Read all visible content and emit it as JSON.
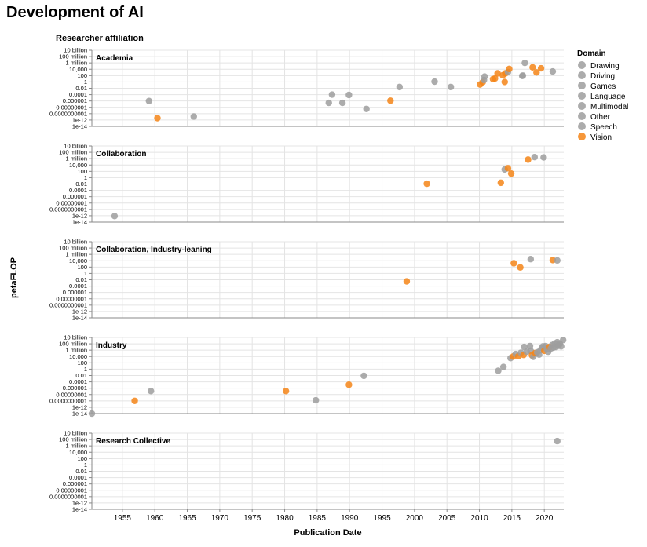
{
  "title": "Development of AI",
  "chart_data": {
    "type": "scatter",
    "title": "Development of AI",
    "facet_label": "Researcher affiliation",
    "xlabel": "Publication Date",
    "ylabel": "petaFLOP",
    "xlim": [
      1950.3,
      2023.0
    ],
    "ylim_log10": [
      -14,
      10
    ],
    "y_scale": "log",
    "x_ticks": [
      "1955",
      "1960",
      "1965",
      "1970",
      "1975",
      "1980",
      "1985",
      "1990",
      "1995",
      "2000",
      "2005",
      "2010",
      "2015",
      "2020"
    ],
    "y_ticks": [
      {
        "label": "10 billion",
        "log10": 10
      },
      {
        "label": "100 million",
        "log10": 8
      },
      {
        "label": "1 million",
        "log10": 6
      },
      {
        "label": "10,000",
        "log10": 4
      },
      {
        "label": "100",
        "log10": 2
      },
      {
        "label": "1",
        "log10": 0
      },
      {
        "label": "0.01",
        "log10": -2
      },
      {
        "label": "0.0001",
        "log10": -4
      },
      {
        "label": "0.000001",
        "log10": -6
      },
      {
        "label": "0.00000001",
        "log10": -8
      },
      {
        "label": "0.0000000001",
        "log10": -10
      },
      {
        "label": "1e-12",
        "log10": -12
      },
      {
        "label": "1e-14",
        "log10": -14
      }
    ],
    "grid": true,
    "legend": {
      "title": "Domain",
      "position": "right",
      "entries": [
        {
          "name": "Drawing",
          "color": "#9e9e9e"
        },
        {
          "name": "Driving",
          "color": "#9e9e9e"
        },
        {
          "name": "Games",
          "color": "#9e9e9e"
        },
        {
          "name": "Language",
          "color": "#9e9e9e"
        },
        {
          "name": "Multimodal",
          "color": "#9e9e9e"
        },
        {
          "name": "Other",
          "color": "#9e9e9e"
        },
        {
          "name": "Speech",
          "color": "#9e9e9e"
        },
        {
          "name": "Vision",
          "color": "#f58518"
        }
      ]
    },
    "colors": {
      "gray": "#9e9e9e",
      "vision": "#f58518"
    },
    "facets": [
      {
        "name": "Academia",
        "points": [
          {
            "x": 1959.1,
            "y": -6.0,
            "d": "gray"
          },
          {
            "x": 1960.4,
            "y": -11.4,
            "d": "vision"
          },
          {
            "x": 1966.0,
            "y": -10.9,
            "d": "gray"
          },
          {
            "x": 1986.8,
            "y": -6.6,
            "d": "gray"
          },
          {
            "x": 1987.3,
            "y": -4.0,
            "d": "gray"
          },
          {
            "x": 1988.9,
            "y": -6.6,
            "d": "gray"
          },
          {
            "x": 1989.9,
            "y": -4.1,
            "d": "gray"
          },
          {
            "x": 1992.6,
            "y": -8.5,
            "d": "gray"
          },
          {
            "x": 1996.3,
            "y": -5.9,
            "d": "vision"
          },
          {
            "x": 1997.7,
            "y": -1.6,
            "d": "gray"
          },
          {
            "x": 2003.1,
            "y": 0.1,
            "d": "gray"
          },
          {
            "x": 2005.6,
            "y": -1.6,
            "d": "gray"
          },
          {
            "x": 2010.1,
            "y": -0.8,
            "d": "vision"
          },
          {
            "x": 2010.5,
            "y": -0.1,
            "d": "vision"
          },
          {
            "x": 2010.7,
            "y": 0.6,
            "d": "gray"
          },
          {
            "x": 2010.8,
            "y": 1.7,
            "d": "gray"
          },
          {
            "x": 2012.1,
            "y": 0.9,
            "d": "vision"
          },
          {
            "x": 2012.4,
            "y": 1.1,
            "d": "vision"
          },
          {
            "x": 2012.8,
            "y": 2.7,
            "d": "vision"
          },
          {
            "x": 2013.6,
            "y": 2.1,
            "d": "vision"
          },
          {
            "x": 2013.9,
            "y": 0.0,
            "d": "vision"
          },
          {
            "x": 2014.0,
            "y": 2.7,
            "d": "vision"
          },
          {
            "x": 2014.4,
            "y": 3.1,
            "d": "gray"
          },
          {
            "x": 2014.6,
            "y": 4.1,
            "d": "vision"
          },
          {
            "x": 2016.6,
            "y": 1.9,
            "d": "gray"
          },
          {
            "x": 2016.7,
            "y": 2.0,
            "d": "gray"
          },
          {
            "x": 2017.0,
            "y": 6.0,
            "d": "gray"
          },
          {
            "x": 2018.2,
            "y": 4.6,
            "d": "vision"
          },
          {
            "x": 2018.8,
            "y": 3.0,
            "d": "vision"
          },
          {
            "x": 2019.5,
            "y": 4.3,
            "d": "vision"
          },
          {
            "x": 2021.3,
            "y": 3.3,
            "d": "gray"
          }
        ]
      },
      {
        "name": "Collaboration",
        "points": [
          {
            "x": 1953.8,
            "y": -12.1,
            "d": "gray"
          },
          {
            "x": 2001.9,
            "y": -1.9,
            "d": "vision"
          },
          {
            "x": 2013.3,
            "y": -1.6,
            "d": "vision"
          },
          {
            "x": 2013.9,
            "y": 2.6,
            "d": "gray"
          },
          {
            "x": 2014.4,
            "y": 3.0,
            "d": "vision"
          },
          {
            "x": 2014.9,
            "y": 1.3,
            "d": "vision"
          },
          {
            "x": 2017.5,
            "y": 5.7,
            "d": "vision"
          },
          {
            "x": 2018.5,
            "y": 6.5,
            "d": "gray"
          },
          {
            "x": 2019.9,
            "y": 6.4,
            "d": "gray"
          }
        ]
      },
      {
        "name": "Collaboration, Industry-leaning",
        "points": [
          {
            "x": 1998.8,
            "y": -2.5,
            "d": "vision"
          },
          {
            "x": 2015.3,
            "y": 3.2,
            "d": "vision"
          },
          {
            "x": 2016.3,
            "y": 1.9,
            "d": "vision"
          },
          {
            "x": 2017.9,
            "y": 4.5,
            "d": "gray"
          },
          {
            "x": 2021.3,
            "y": 4.2,
            "d": "vision"
          },
          {
            "x": 2022.0,
            "y": 4.1,
            "d": "gray"
          }
        ]
      },
      {
        "name": "Industry",
        "points": [
          {
            "x": 1950.3,
            "y": -14.0,
            "d": "gray"
          },
          {
            "x": 1956.9,
            "y": -10.0,
            "d": "vision"
          },
          {
            "x": 1959.4,
            "y": -6.9,
            "d": "gray"
          },
          {
            "x": 1980.2,
            "y": -6.9,
            "d": "vision"
          },
          {
            "x": 1984.8,
            "y": -9.8,
            "d": "gray"
          },
          {
            "x": 1989.9,
            "y": -4.9,
            "d": "vision"
          },
          {
            "x": 1992.2,
            "y": -2.1,
            "d": "gray"
          },
          {
            "x": 2012.9,
            "y": -0.5,
            "d": "gray"
          },
          {
            "x": 2013.7,
            "y": 0.7,
            "d": "gray"
          },
          {
            "x": 2014.8,
            "y": 3.5,
            "d": "gray"
          },
          {
            "x": 2015.2,
            "y": 4.0,
            "d": "vision"
          },
          {
            "x": 2015.6,
            "y": 4.8,
            "d": "gray"
          },
          {
            "x": 2016.0,
            "y": 4.1,
            "d": "vision"
          },
          {
            "x": 2016.4,
            "y": 5.2,
            "d": "gray"
          },
          {
            "x": 2016.8,
            "y": 4.5,
            "d": "vision"
          },
          {
            "x": 2016.9,
            "y": 7.0,
            "d": "gray"
          },
          {
            "x": 2017.3,
            "y": 5.5,
            "d": "gray"
          },
          {
            "x": 2017.8,
            "y": 7.3,
            "d": "gray"
          },
          {
            "x": 2017.9,
            "y": 5.8,
            "d": "gray"
          },
          {
            "x": 2018.1,
            "y": 4.4,
            "d": "vision"
          },
          {
            "x": 2018.3,
            "y": 3.9,
            "d": "gray"
          },
          {
            "x": 2018.6,
            "y": 5.1,
            "d": "vision"
          },
          {
            "x": 2018.9,
            "y": 5.3,
            "d": "gray"
          },
          {
            "x": 2019.2,
            "y": 4.6,
            "d": "gray"
          },
          {
            "x": 2019.4,
            "y": 6.0,
            "d": "gray"
          },
          {
            "x": 2019.6,
            "y": 6.7,
            "d": "gray"
          },
          {
            "x": 2019.8,
            "y": 7.2,
            "d": "gray"
          },
          {
            "x": 2020.0,
            "y": 5.8,
            "d": "vision"
          },
          {
            "x": 2020.2,
            "y": 7.3,
            "d": "gray"
          },
          {
            "x": 2020.4,
            "y": 6.3,
            "d": "gray"
          },
          {
            "x": 2020.6,
            "y": 5.5,
            "d": "gray"
          },
          {
            "x": 2020.8,
            "y": 7.0,
            "d": "vision"
          },
          {
            "x": 2021.0,
            "y": 6.5,
            "d": "gray"
          },
          {
            "x": 2021.2,
            "y": 7.6,
            "d": "gray"
          },
          {
            "x": 2021.4,
            "y": 6.8,
            "d": "gray"
          },
          {
            "x": 2021.6,
            "y": 8.1,
            "d": "gray"
          },
          {
            "x": 2021.8,
            "y": 7.0,
            "d": "gray"
          },
          {
            "x": 2022.0,
            "y": 8.5,
            "d": "gray"
          },
          {
            "x": 2022.2,
            "y": 7.4,
            "d": "gray"
          },
          {
            "x": 2022.4,
            "y": 8.0,
            "d": "gray"
          },
          {
            "x": 2022.6,
            "y": 7.2,
            "d": "gray"
          },
          {
            "x": 2022.9,
            "y": 9.2,
            "d": "gray"
          }
        ]
      },
      {
        "name": "Research Collective",
        "points": [
          {
            "x": 2022.0,
            "y": 7.5,
            "d": "gray"
          }
        ]
      }
    ]
  }
}
